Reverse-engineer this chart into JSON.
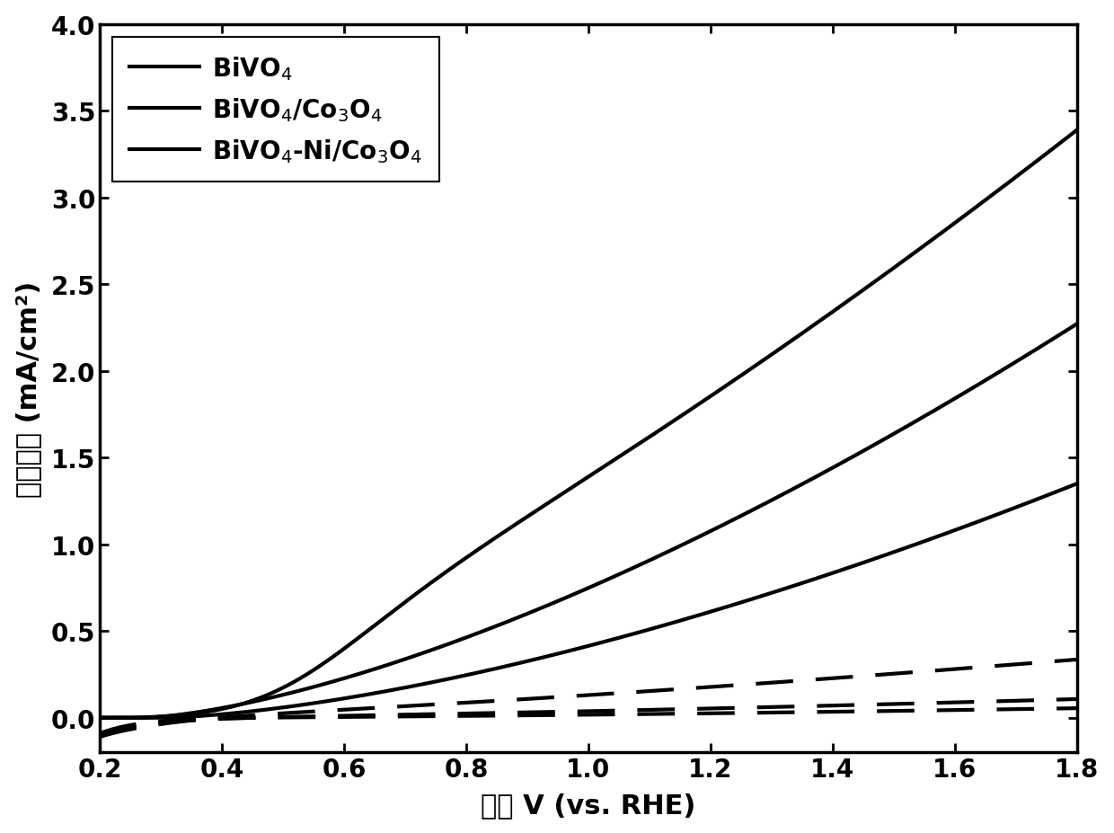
{
  "xlabel_cn": "电位 V (vs. RHE)",
  "ylabel_cn": "电流密度 (mA/cm²)",
  "xlim": [
    0.2,
    1.8
  ],
  "ylim": [
    -0.2,
    4.0
  ],
  "xticks": [
    0.2,
    0.4,
    0.6,
    0.8,
    1.0,
    1.2,
    1.4,
    1.6,
    1.8
  ],
  "yticks": [
    0.0,
    0.5,
    1.0,
    1.5,
    2.0,
    2.5,
    3.0,
    3.5,
    4.0
  ],
  "line_color": "#000000",
  "linewidth": 3.0,
  "background_color": "#ffffff",
  "x_start": 0.2,
  "x_end": 1.8,
  "n_points": 300,
  "legend_labels": [
    "BiVO$_4$",
    "BiVO$_4$/Co$_3$O$_4$",
    "BiVO$_4$-Ni/Co$_3$O$_4$"
  ],
  "font_size_ticks": 20,
  "font_size_labels": 22,
  "font_size_legend": 20
}
